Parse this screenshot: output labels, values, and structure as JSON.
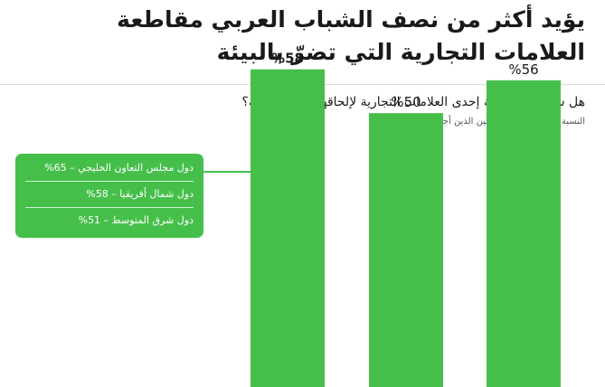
{
  "header": {
    "title_line1": "يؤيد أكثر من نصف الشباب العربي مقاطعة",
    "title_line2": "العلامات التجارية التي تضرّ بالبيئة",
    "question": "هل ستدعم مقاطعة إحدى العلامات التجارية لإلحاقها الضرر بالبيئة؟",
    "note": "النسبة المئوية من المشاركين الذين أجابوا \"نعم\""
  },
  "callout": {
    "items": [
      "دول مجلس التعاون الخليجي – 65%",
      "دول شمال أفريقيا – 58%",
      "دول شرق المتوسط – 51%"
    ]
  },
  "chart_data": {
    "type": "bar",
    "values": [
      58,
      50,
      56
    ],
    "data_labels": [
      "%58",
      "%50",
      "%56"
    ],
    "highlighted_index": 0,
    "ylim": [
      0,
      70
    ],
    "grid": false,
    "bar_color": "#45bf4a",
    "label_color": "#1a1a1a"
  }
}
